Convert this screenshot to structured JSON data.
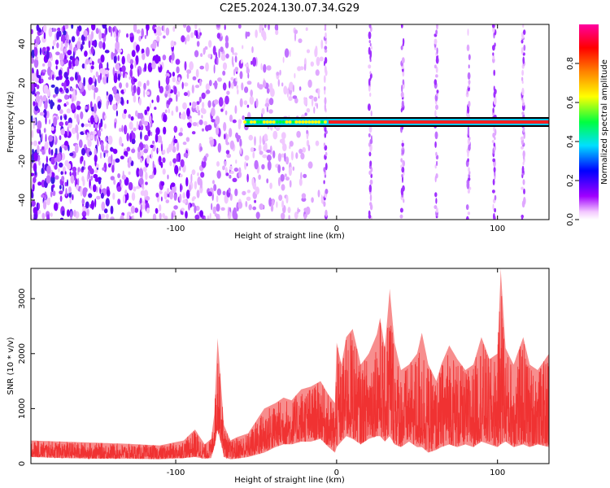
{
  "title": "C2E5.2024.130.07.34.G29",
  "chart_data": [
    {
      "type": "heatmap",
      "subtype": "spectrogram",
      "xlabel": "Height of straight line (km)",
      "ylabel": "Frequency (Hz)",
      "xlim": [
        -190,
        132
      ],
      "ylim": [
        -50,
        50
      ],
      "xticks": [
        -100,
        0,
        100
      ],
      "yticks": [
        -40,
        -20,
        0,
        20,
        40
      ],
      "colorbar": {
        "label": "Normalized spectral amplitude",
        "range": [
          0.0,
          1.0
        ],
        "ticks": [
          "0.0",
          "0.2",
          "0.4",
          "0.6",
          "0.8"
        ],
        "colormap": [
          "#ffffff",
          "#f3c8ff",
          "#a000ff",
          "#0000ff",
          "#00e0ff",
          "#00ff40",
          "#ffff00",
          "#ff8000",
          "#ff0000",
          "#ff00a0"
        ]
      },
      "features": {
        "diffuse_signal_x_range": [
          -190,
          -8
        ],
        "carrier_line": {
          "frequency": 0,
          "x_start": -57,
          "x_end": 132,
          "amplitude_peak": 0.85
        },
        "vertical_stripes_x": [
          -7,
          21,
          41,
          62,
          82,
          98,
          116
        ]
      }
    },
    {
      "type": "line",
      "xlabel": "Height of straight line (km)",
      "ylabel": "SNR (10 * v/v)",
      "xlim": [
        -190,
        132
      ],
      "ylim": [
        0,
        3550
      ],
      "xticks": [
        -100,
        0,
        100
      ],
      "yticks": [
        0,
        1000,
        2000,
        3000
      ],
      "color": "#f03232",
      "series": [
        {
          "x": [
            -190,
            -170,
            -150,
            -130,
            -110,
            -95,
            -88,
            -82,
            -78,
            -76,
            -74,
            -72,
            -70,
            -66,
            -62,
            -55,
            -45,
            -38,
            -33,
            -28,
            -22,
            -16,
            -10,
            -5,
            -1,
            0,
            3,
            6,
            10,
            15,
            20,
            25,
            27,
            30,
            33,
            36,
            40,
            45,
            50,
            53,
            57,
            62,
            65,
            70,
            75,
            80,
            85,
            90,
            95,
            100,
            102,
            105,
            110,
            116,
            120,
            125,
            132
          ],
          "envelope_max": [
            420,
            400,
            380,
            360,
            330,
            420,
            620,
            350,
            450,
            900,
            2280,
            1500,
            700,
            420,
            480,
            550,
            1000,
            1100,
            1200,
            1150,
            1350,
            1400,
            1500,
            1250,
            1100,
            2200,
            1800,
            2300,
            2450,
            1800,
            2000,
            2350,
            2650,
            2100,
            3180,
            2200,
            1700,
            1800,
            2000,
            2380,
            1800,
            1500,
            1800,
            2150,
            1900,
            1700,
            1800,
            2300,
            1900,
            2000,
            3550,
            2100,
            1800,
            2300,
            1800,
            1700,
            2000
          ],
          "envelope_min": [
            120,
            100,
            90,
            90,
            80,
            100,
            120,
            90,
            100,
            300,
            600,
            400,
            120,
            80,
            90,
            120,
            200,
            300,
            350,
            350,
            400,
            400,
            450,
            300,
            200,
            300,
            400,
            500,
            450,
            350,
            450,
            500,
            500,
            400,
            500,
            350,
            300,
            400,
            300,
            300,
            200,
            250,
            300,
            350,
            300,
            350,
            300,
            400,
            350,
            300,
            350,
            400,
            300,
            350,
            300,
            350,
            300
          ]
        }
      ]
    }
  ]
}
